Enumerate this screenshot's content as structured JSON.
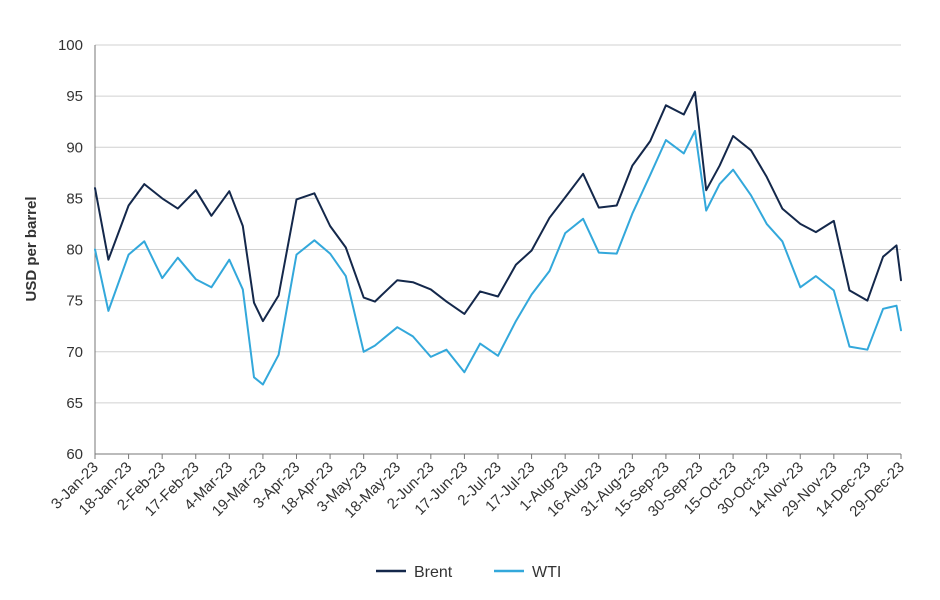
{
  "chart_data": {
    "type": "line",
    "title": "",
    "xlabel": "",
    "ylabel": "USD per barrel",
    "ylim": [
      60,
      100
    ],
    "yticks": [
      60,
      65,
      70,
      75,
      80,
      85,
      90,
      95,
      100
    ],
    "grid": "horizontal",
    "legend_position": "bottom-center",
    "x": [
      "2023-01-03",
      "2023-01-09",
      "2023-01-18",
      "2023-01-25",
      "2023-02-02",
      "2023-02-09",
      "2023-02-17",
      "2023-02-24",
      "2023-03-04",
      "2023-03-10",
      "2023-03-15",
      "2023-03-19",
      "2023-03-26",
      "2023-04-03",
      "2023-04-11",
      "2023-04-18",
      "2023-04-25",
      "2023-05-03",
      "2023-05-08",
      "2023-05-18",
      "2023-05-25",
      "2023-06-02",
      "2023-06-09",
      "2023-06-17",
      "2023-06-24",
      "2023-07-02",
      "2023-07-10",
      "2023-07-17",
      "2023-07-25",
      "2023-08-01",
      "2023-08-09",
      "2023-08-16",
      "2023-08-24",
      "2023-08-31",
      "2023-09-08",
      "2023-09-15",
      "2023-09-23",
      "2023-09-28",
      "2023-10-03",
      "2023-10-09",
      "2023-10-15",
      "2023-10-23",
      "2023-10-30",
      "2023-11-06",
      "2023-11-14",
      "2023-11-21",
      "2023-11-29",
      "2023-12-06",
      "2023-12-14",
      "2023-12-21",
      "2023-12-27",
      "2023-12-29"
    ],
    "series": [
      {
        "name": "Brent",
        "color": "#14284b",
        "values": [
          86.0,
          79.0,
          84.3,
          86.4,
          85.0,
          84.0,
          85.8,
          83.3,
          85.7,
          82.3,
          74.8,
          73.0,
          75.5,
          84.9,
          85.5,
          82.3,
          80.2,
          75.3,
          74.9,
          77.0,
          76.8,
          76.1,
          74.9,
          73.7,
          75.9,
          75.4,
          78.5,
          79.9,
          83.1,
          85.1,
          87.4,
          84.1,
          84.3,
          88.2,
          90.6,
          94.1,
          93.2,
          95.4,
          85.8,
          88.2,
          91.1,
          89.7,
          87.1,
          84.0,
          82.5,
          81.7,
          82.8,
          76.0,
          75.0,
          79.3,
          80.4,
          77.0
        ]
      },
      {
        "name": "WTI",
        "color": "#33a8db",
        "values": [
          80.0,
          74.0,
          79.5,
          80.8,
          77.2,
          79.2,
          77.1,
          76.3,
          79.0,
          76.1,
          67.5,
          66.8,
          69.7,
          79.5,
          80.9,
          79.6,
          77.4,
          70.0,
          70.6,
          72.4,
          71.5,
          69.5,
          70.2,
          68.0,
          70.8,
          69.6,
          73.0,
          75.6,
          77.9,
          81.6,
          83.0,
          79.7,
          79.6,
          83.5,
          87.3,
          90.7,
          89.4,
          91.6,
          83.8,
          86.4,
          87.8,
          85.3,
          82.5,
          80.8,
          76.3,
          77.4,
          76.0,
          70.5,
          70.2,
          74.2,
          74.5,
          72.1
        ]
      }
    ],
    "x_tick_labels": [
      "3-Jan-23",
      "18-Jan-23",
      "2-Feb-23",
      "17-Feb-23",
      "4-Mar-23",
      "19-Mar-23",
      "3-Apr-23",
      "18-Apr-23",
      "3-May-23",
      "18-May-23",
      "2-Jun-23",
      "17-Jun-23",
      "2-Jul-23",
      "17-Jul-23",
      "1-Aug-23",
      "16-Aug-23",
      "31-Aug-23",
      "15-Sep-23",
      "30-Sep-23",
      "15-Oct-23",
      "30-Oct-23",
      "14-Nov-23",
      "29-Nov-23",
      "14-Dec-23",
      "29-Dec-23"
    ],
    "x_tick_dates": [
      "2023-01-03",
      "2023-01-18",
      "2023-02-02",
      "2023-02-17",
      "2023-03-04",
      "2023-03-19",
      "2023-04-03",
      "2023-04-18",
      "2023-05-03",
      "2023-05-18",
      "2023-06-02",
      "2023-06-17",
      "2023-07-02",
      "2023-07-17",
      "2023-08-01",
      "2023-08-16",
      "2023-08-31",
      "2023-09-15",
      "2023-09-30",
      "2023-10-15",
      "2023-10-30",
      "2023-11-14",
      "2023-11-29",
      "2023-12-14",
      "2023-12-29"
    ]
  },
  "colors": {
    "brent": "#14284b",
    "wti": "#33a8db",
    "grid": "#d0d0d0",
    "axis": "#777777",
    "text": "#333333"
  }
}
